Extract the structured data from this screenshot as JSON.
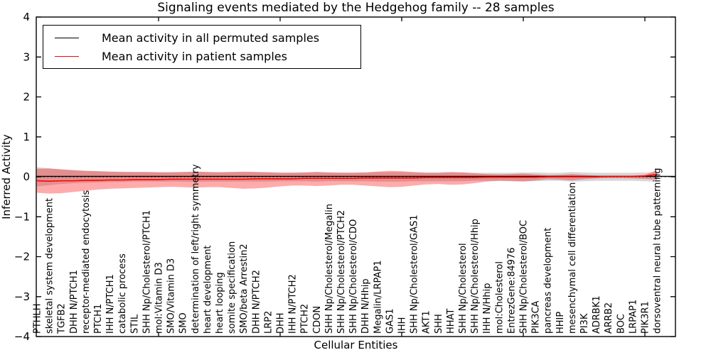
{
  "title": "Signaling events mediated by the Hedgehog family -- 28 samples",
  "legend": {
    "items": [
      {
        "label": "Mean activity in all permuted samples",
        "color": "#000000"
      },
      {
        "label": "Mean activity in patient samples",
        "color": "#ff0000"
      }
    ],
    "position": "upper-left"
  },
  "axes": {
    "ylabel": "Inferred Activity",
    "xlabel": "Cellular Entities",
    "ylim": [
      -4,
      4
    ],
    "grid": false,
    "yticks": [
      {
        "value": 4,
        "label": "4"
      },
      {
        "value": 3,
        "label": "3"
      },
      {
        "value": 2,
        "label": "2"
      },
      {
        "value": 1,
        "label": "1"
      },
      {
        "value": 0,
        "label": "0"
      },
      {
        "value": -1,
        "label": "−1"
      },
      {
        "value": -2,
        "label": "−2"
      },
      {
        "value": -3,
        "label": "−3"
      },
      {
        "value": -4,
        "label": "−4"
      }
    ],
    "xtick_indices": [
      10,
      20,
      30,
      40,
      50
    ]
  },
  "chart_data": {
    "type": "line",
    "title": "Signaling events mediated by the Hedgehog family -- 28 samples",
    "xlabel": "Cellular Entities",
    "ylabel": "Inferred Activity",
    "ylim": [
      -4,
      4
    ],
    "categories": [
      "PTHLH",
      "skeletal system development",
      "TGFB2",
      "DHH N/PTCH1",
      "receptor-mediated endocytosis",
      "PTCH1",
      "IHH N/PTCH1",
      "catabolic process",
      "STIL",
      "SHH Np/Cholesterol/PTCH1",
      "mol:Vitamin D3",
      "SMO/Vitamin D3",
      "SMO",
      "determination of left/right symmetry",
      "heart development",
      "heart looping",
      "somite specification",
      "SMO/beta Arrestin2",
      "DHH N/PTCH2",
      "LRP2",
      "DHH",
      "IHH N/PTCH2",
      "PTCH2",
      "CDON",
      "SHH Np/Cholesterol/Megalin",
      "SHH Np/Cholesterol/PTCH2",
      "SHH Np/Cholesterol/CDO",
      "DHH N/Hhip",
      "Megalin/LRPAP1",
      "GAS1",
      "IHH",
      "SHH Np/Cholesterol/GAS1",
      "AKT1",
      "SHH",
      "HHAT",
      "SHH Np/Cholesterol",
      "SHH Np/Cholesterol/Hhip",
      "IHH N/Hhip",
      "mol:Cholesterol",
      "EntrezGene:84976",
      "SHH Np/Cholesterol/BOC",
      "PIK3CA",
      "pancreas development",
      "HHIP",
      "mesenchymal cell differentiation",
      "PI3K",
      "ADRBK1",
      "ARRB2",
      "BOC",
      "LRPAP1",
      "PIK3R1",
      "dorsoventral neural tube patterning"
    ],
    "series": [
      {
        "name": "Mean activity in all permuted samples",
        "color": "#000000",
        "band_color": "rgba(0,0,0,0.16)",
        "values": [
          0.01,
          0.01,
          0.01,
          0.01,
          0.01,
          0.01,
          0.01,
          0.01,
          0.01,
          0.01,
          0.01,
          0.01,
          0.01,
          0.01,
          0.01,
          0.01,
          0.01,
          0.01,
          0.01,
          0.01,
          0.01,
          0.01,
          0.01,
          0.01,
          0.01,
          0.01,
          0.01,
          0.01,
          0.01,
          0.01,
          0.01,
          0.01,
          0.01,
          0.01,
          0.01,
          0.01,
          0.01,
          0.01,
          0.01,
          0.01,
          0.01,
          0.01,
          0.01,
          0.01,
          0.01,
          0.01,
          0.01,
          0.01,
          0.01,
          0.01,
          0.01,
          0.01
        ],
        "band_upper": [
          0.24,
          0.21,
          0.18,
          0.16,
          0.15,
          0.14,
          0.13,
          0.13,
          0.12,
          0.12,
          0.12,
          0.12,
          0.12,
          0.13,
          0.12,
          0.12,
          0.12,
          0.12,
          0.12,
          0.12,
          0.11,
          0.11,
          0.11,
          0.12,
          0.11,
          0.11,
          0.11,
          0.11,
          0.12,
          0.12,
          0.12,
          0.11,
          0.11,
          0.11,
          0.11,
          0.11,
          0.1,
          0.1,
          0.1,
          0.1,
          0.11,
          0.11,
          0.1,
          0.1,
          0.12,
          0.11,
          0.1,
          0.1,
          0.1,
          0.1,
          0.11,
          0.12
        ],
        "band_lower": [
          -0.24,
          -0.21,
          -0.18,
          -0.16,
          -0.15,
          -0.14,
          -0.13,
          -0.13,
          -0.12,
          -0.12,
          -0.12,
          -0.12,
          -0.12,
          -0.13,
          -0.12,
          -0.12,
          -0.12,
          -0.12,
          -0.12,
          -0.12,
          -0.11,
          -0.11,
          -0.11,
          -0.12,
          -0.11,
          -0.11,
          -0.11,
          -0.11,
          -0.12,
          -0.12,
          -0.12,
          -0.11,
          -0.11,
          -0.11,
          -0.11,
          -0.11,
          -0.1,
          -0.1,
          -0.1,
          -0.1,
          -0.11,
          -0.11,
          -0.1,
          -0.1,
          -0.12,
          -0.11,
          -0.1,
          -0.1,
          -0.1,
          -0.1,
          -0.11,
          -0.12
        ]
      },
      {
        "name": "Mean activity in patient samples",
        "color": "#ff0000",
        "band_color": "rgba(255,0,0,0.33)",
        "values": [
          -0.1,
          -0.11,
          -0.1,
          -0.1,
          -0.09,
          -0.09,
          -0.08,
          -0.08,
          -0.07,
          -0.07,
          -0.07,
          -0.06,
          -0.06,
          -0.06,
          -0.06,
          -0.06,
          -0.06,
          -0.06,
          -0.05,
          -0.05,
          -0.05,
          -0.05,
          -0.04,
          -0.04,
          -0.04,
          -0.04,
          -0.04,
          -0.03,
          -0.03,
          -0.03,
          -0.03,
          -0.03,
          -0.02,
          -0.02,
          -0.02,
          -0.02,
          -0.02,
          -0.01,
          -0.01,
          -0.01,
          -0.01,
          -0.01,
          0.0,
          0.0,
          0.0,
          0.0,
          0.0,
          0.01,
          0.01,
          0.01,
          0.02,
          0.06
        ],
        "band_upper": [
          0.2,
          0.21,
          0.19,
          0.17,
          0.15,
          0.14,
          0.13,
          0.12,
          0.12,
          0.12,
          0.11,
          0.11,
          0.12,
          0.13,
          0.12,
          0.11,
          0.12,
          0.13,
          0.12,
          0.11,
          0.1,
          0.1,
          0.11,
          0.12,
          0.11,
          0.1,
          0.1,
          0.11,
          0.13,
          0.15,
          0.14,
          0.12,
          0.1,
          0.1,
          0.12,
          0.11,
          0.09,
          0.07,
          0.06,
          0.07,
          0.08,
          0.06,
          0.04,
          0.05,
          0.07,
          0.05,
          0.03,
          0.02,
          0.02,
          0.03,
          0.05,
          0.16
        ],
        "band_lower": [
          -0.4,
          -0.42,
          -0.41,
          -0.38,
          -0.35,
          -0.32,
          -0.3,
          -0.29,
          -0.28,
          -0.27,
          -0.26,
          -0.25,
          -0.26,
          -0.27,
          -0.26,
          -0.26,
          -0.28,
          -0.3,
          -0.29,
          -0.27,
          -0.24,
          -0.22,
          -0.22,
          -0.23,
          -0.22,
          -0.2,
          -0.2,
          -0.22,
          -0.24,
          -0.26,
          -0.25,
          -0.22,
          -0.19,
          -0.18,
          -0.2,
          -0.19,
          -0.16,
          -0.12,
          -0.1,
          -0.11,
          -0.12,
          -0.09,
          -0.06,
          -0.07,
          -0.09,
          -0.06,
          -0.04,
          -0.03,
          -0.03,
          -0.04,
          -0.05,
          -0.07
        ]
      }
    ],
    "zero_line": {
      "style": "dotted",
      "color": "#000000",
      "y": 0
    }
  }
}
